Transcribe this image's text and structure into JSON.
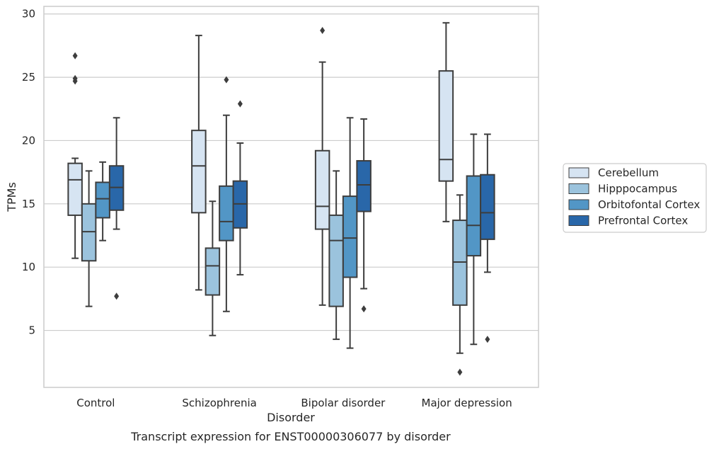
{
  "chart_data": {
    "type": "boxplot",
    "xlabel": "Disorder",
    "ylabel": "TPMs",
    "caption": "Transcript expression for ENST00000306077 by disorder",
    "ylim": [
      0.5,
      30.6
    ],
    "yticks": [
      5,
      10,
      15,
      20,
      25,
      30
    ],
    "categories": [
      "Control",
      "Schizophrenia",
      "Bipolar disorder",
      "Major depression"
    ],
    "grid": "horizontal",
    "legend_position": "right",
    "series": [
      {
        "name": "Cerebellum",
        "color": "#d6e4f2",
        "boxes": [
          {
            "whisker_low": 10.7,
            "q1": 14.1,
            "median": 16.9,
            "q3": 18.2,
            "whisker_high": 18.6,
            "outliers": [
              24.7,
              24.9,
              26.7
            ]
          },
          {
            "whisker_low": 8.2,
            "q1": 14.3,
            "median": 18.0,
            "q3": 20.8,
            "whisker_high": 28.3,
            "outliers": []
          },
          {
            "whisker_low": 7.0,
            "q1": 13.0,
            "median": 14.8,
            "q3": 19.2,
            "whisker_high": 26.2,
            "outliers": [
              28.7
            ]
          },
          {
            "whisker_low": 13.6,
            "q1": 16.8,
            "median": 18.5,
            "q3": 25.5,
            "whisker_high": 29.3,
            "outliers": []
          }
        ]
      },
      {
        "name": "Hipppocampus",
        "color": "#9bc3dd",
        "boxes": [
          {
            "whisker_low": 6.9,
            "q1": 10.5,
            "median": 12.8,
            "q3": 15.0,
            "whisker_high": 17.6,
            "outliers": []
          },
          {
            "whisker_low": 4.6,
            "q1": 7.8,
            "median": 10.1,
            "q3": 11.5,
            "whisker_high": 15.2,
            "outliers": []
          },
          {
            "whisker_low": 4.3,
            "q1": 6.9,
            "median": 12.1,
            "q3": 14.1,
            "whisker_high": 17.6,
            "outliers": []
          },
          {
            "whisker_low": 3.2,
            "q1": 7.0,
            "median": 10.4,
            "q3": 13.7,
            "whisker_high": 15.7,
            "outliers": [
              1.7
            ]
          }
        ]
      },
      {
        "name": "Orbitofontal Cortex",
        "color": "#5296c6",
        "boxes": [
          {
            "whisker_low": 12.1,
            "q1": 13.9,
            "median": 15.4,
            "q3": 16.7,
            "whisker_high": 18.3,
            "outliers": []
          },
          {
            "whisker_low": 6.5,
            "q1": 12.1,
            "median": 13.6,
            "q3": 16.4,
            "whisker_high": 22.0,
            "outliers": [
              24.8
            ]
          },
          {
            "whisker_low": 3.6,
            "q1": 9.2,
            "median": 12.3,
            "q3": 15.6,
            "whisker_high": 21.8,
            "outliers": []
          },
          {
            "whisker_low": 3.9,
            "q1": 10.9,
            "median": 13.3,
            "q3": 17.2,
            "whisker_high": 20.5,
            "outliers": []
          }
        ]
      },
      {
        "name": "Prefrontal Cortex",
        "color": "#2967a9",
        "boxes": [
          {
            "whisker_low": 13.0,
            "q1": 14.5,
            "median": 16.3,
            "q3": 18.0,
            "whisker_high": 21.8,
            "outliers": [
              7.7
            ]
          },
          {
            "whisker_low": 9.4,
            "q1": 13.1,
            "median": 15.0,
            "q3": 16.8,
            "whisker_high": 19.8,
            "outliers": [
              22.9
            ]
          },
          {
            "whisker_low": 8.3,
            "q1": 14.4,
            "median": 16.5,
            "q3": 18.4,
            "whisker_high": 21.7,
            "outliers": [
              6.7
            ]
          },
          {
            "whisker_low": 9.6,
            "q1": 12.2,
            "median": 14.3,
            "q3": 17.3,
            "whisker_high": 20.5,
            "outliers": [
              4.3
            ]
          }
        ]
      }
    ]
  }
}
